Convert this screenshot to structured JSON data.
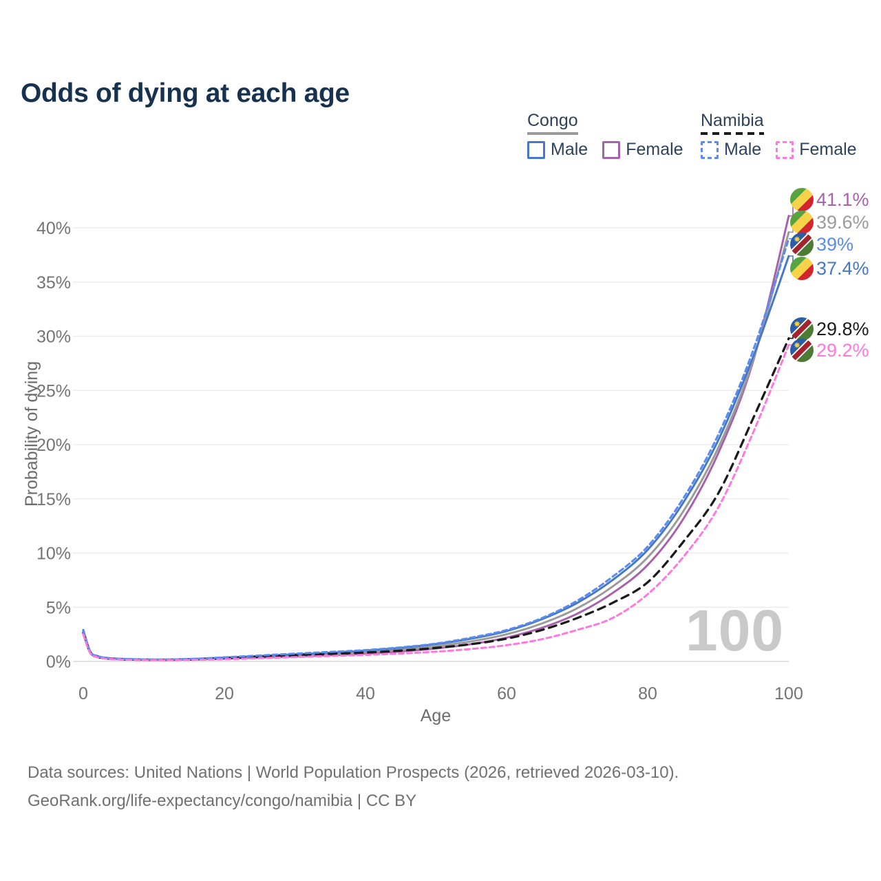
{
  "title": "Odds of dying at each age",
  "legend": {
    "groups": [
      {
        "name": "Congo",
        "line_style": "solid",
        "line_color": "#9b9b9b",
        "items": [
          {
            "label": "Male",
            "color": "#4678c8",
            "dash": false
          },
          {
            "label": "Female",
            "color": "#a763a9",
            "dash": false
          }
        ]
      },
      {
        "name": "Namibia",
        "line_style": "dashed",
        "line_color": "#1b1b1b",
        "items": [
          {
            "label": "Male",
            "color": "#5a8cf0",
            "dash": true
          },
          {
            "label": "Female",
            "color": "#ff78dd",
            "dash": true
          }
        ]
      }
    ]
  },
  "axes": {
    "x_label": "Age",
    "y_label": "Probability of dying"
  },
  "watermark": {
    "text": "100"
  },
  "footer": {
    "line1": "Data sources: United Nations | World Population Prospects (2026, retrieved 2026-03-10).",
    "line2": "GeoRank.org/life-expectancy/congo/namibia | CC BY"
  },
  "chart_data": {
    "type": "line",
    "title": "Odds of dying at each age",
    "xlabel": "Age",
    "ylabel": "Probability of dying",
    "xlim": [
      0,
      100
    ],
    "ylim_pct": [
      0,
      43
    ],
    "grid": true,
    "legend_position": "top-right",
    "xticks": [
      0,
      20,
      40,
      60,
      80,
      100
    ],
    "yticks": [
      {
        "value": 0,
        "label": "0%"
      },
      {
        "value": 5,
        "label": "5%"
      },
      {
        "value": 10,
        "label": "10%"
      },
      {
        "value": 15,
        "label": "15%"
      },
      {
        "value": 20,
        "label": "20%"
      },
      {
        "value": 25,
        "label": "25%"
      },
      {
        "value": 30,
        "label": "30%"
      },
      {
        "value": 35,
        "label": "35%"
      },
      {
        "value": 40,
        "label": "40%"
      }
    ],
    "x": [
      0,
      1,
      2,
      3,
      5,
      10,
      15,
      20,
      25,
      30,
      35,
      40,
      45,
      50,
      55,
      60,
      65,
      70,
      75,
      80,
      85,
      90,
      95,
      100
    ],
    "series": [
      {
        "id": "congo_female",
        "name": "Congo Female",
        "country": "congo",
        "sex": "female",
        "color": "#a763a9",
        "dash": "none",
        "end_label": "41.1%",
        "end_value_pct": 41.1,
        "values": [
          2.6,
          0.8,
          0.43,
          0.3,
          0.2,
          0.14,
          0.17,
          0.25,
          0.35,
          0.45,
          0.57,
          0.72,
          0.92,
          1.2,
          1.6,
          2.2,
          3.1,
          4.4,
          6.3,
          8.9,
          13.1,
          19.2,
          27.8,
          41.1
        ]
      },
      {
        "id": "congo_all",
        "name": "Congo Both sexes",
        "country": "congo",
        "sex": "all",
        "color": "#9b9b9b",
        "dash": "none",
        "end_label": "39.6%",
        "end_value_pct": 39.6,
        "values": [
          2.75,
          0.85,
          0.45,
          0.32,
          0.22,
          0.16,
          0.19,
          0.3,
          0.42,
          0.55,
          0.68,
          0.85,
          1.08,
          1.4,
          1.85,
          2.5,
          3.5,
          4.9,
          6.9,
          9.6,
          13.8,
          19.7,
          27.9,
          39.6
        ]
      },
      {
        "id": "congo_male",
        "name": "Congo Male",
        "country": "congo",
        "sex": "male",
        "color": "#4678c8",
        "dash": "none",
        "end_label": "37.4%",
        "end_value_pct": 37.4,
        "values": [
          2.9,
          0.9,
          0.5,
          0.35,
          0.25,
          0.18,
          0.22,
          0.35,
          0.5,
          0.65,
          0.8,
          1.0,
          1.25,
          1.6,
          2.1,
          2.8,
          3.9,
          5.4,
          7.5,
          10.3,
          14.6,
          20.4,
          28.2,
          37.4
        ]
      },
      {
        "id": "namibia_all",
        "name": "Namibia Both sexes",
        "country": "namibia",
        "sex": "all",
        "color": "#1b1b1b",
        "dash": "long",
        "end_label": "29.8%",
        "end_value_pct": 29.8,
        "values": [
          2.65,
          0.8,
          0.42,
          0.3,
          0.2,
          0.15,
          0.18,
          0.3,
          0.44,
          0.58,
          0.7,
          0.82,
          1.0,
          1.25,
          1.6,
          2.1,
          2.9,
          4.0,
          5.4,
          7.3,
          11.0,
          15.5,
          22.5,
          29.8
        ]
      },
      {
        "id": "namibia_male",
        "name": "Namibia Male",
        "country": "namibia",
        "sex": "male",
        "color": "#5a8cf0",
        "dash": "short",
        "end_label": "39%",
        "end_value_pct": 39.0,
        "values": [
          2.8,
          0.85,
          0.48,
          0.33,
          0.23,
          0.17,
          0.22,
          0.38,
          0.55,
          0.72,
          0.88,
          1.05,
          1.3,
          1.65,
          2.2,
          2.9,
          4.0,
          5.6,
          7.8,
          10.6,
          15.0,
          20.9,
          28.8,
          39.0
        ]
      },
      {
        "id": "namibia_female",
        "name": "Namibia Female",
        "country": "namibia",
        "sex": "female",
        "color": "#ff78dd",
        "dash": "short",
        "end_label": "29.2%",
        "end_value_pct": 29.2,
        "values": [
          2.5,
          0.75,
          0.4,
          0.27,
          0.18,
          0.12,
          0.14,
          0.2,
          0.3,
          0.4,
          0.5,
          0.6,
          0.73,
          0.9,
          1.15,
          1.5,
          2.05,
          2.9,
          4.0,
          6.2,
          9.6,
          14.2,
          21.2,
          29.2
        ]
      }
    ]
  }
}
